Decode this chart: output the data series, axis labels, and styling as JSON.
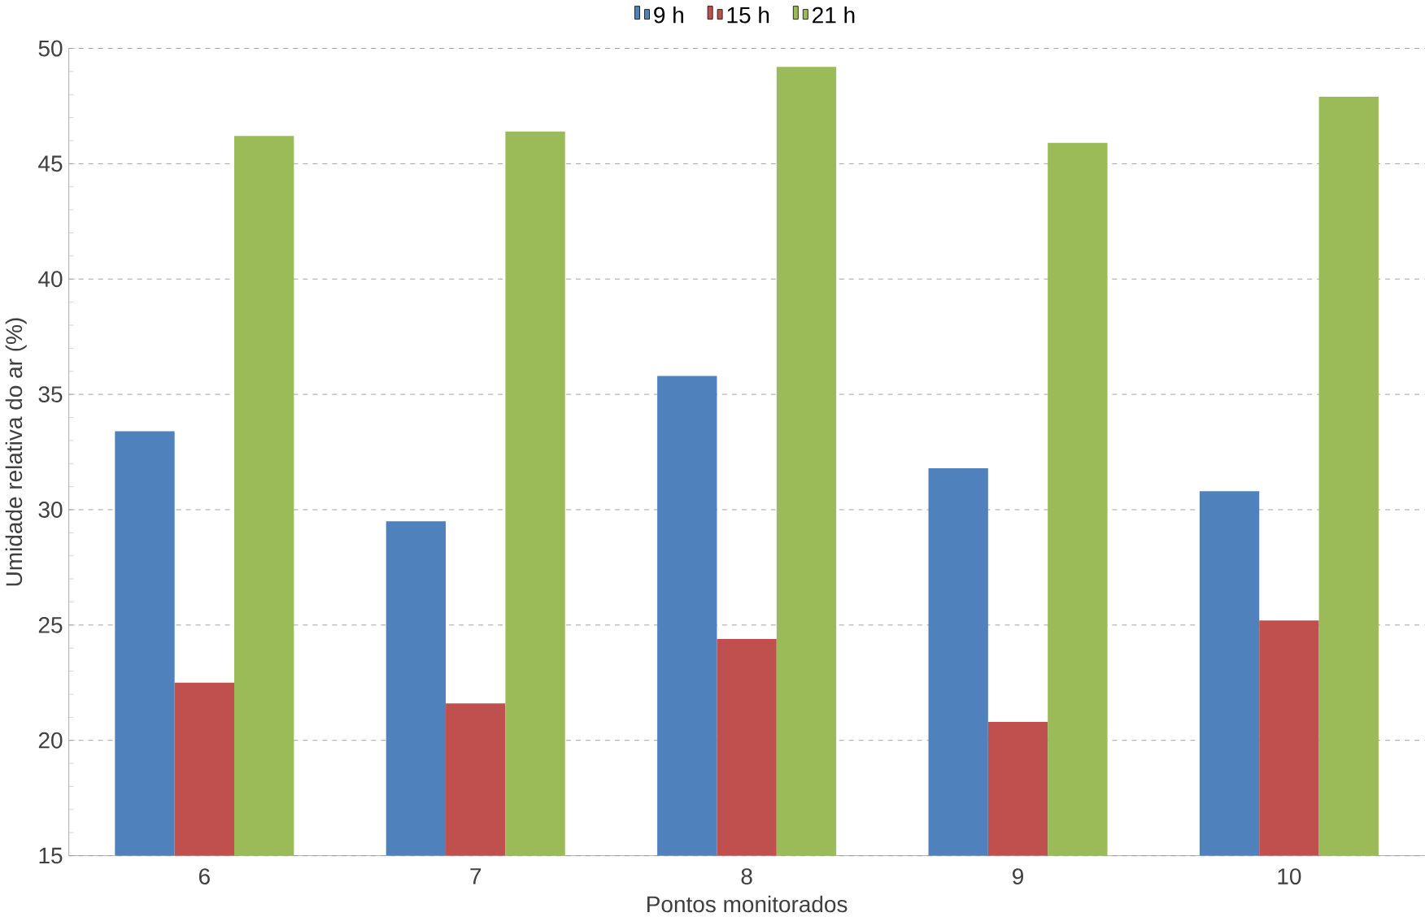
{
  "chart_data": {
    "type": "bar",
    "xlabel": "Pontos monitorados",
    "ylabel": "Umidade relativa do ar (%)",
    "categories": [
      "6",
      "7",
      "8",
      "9",
      "10"
    ],
    "series": [
      {
        "name": "9 h",
        "color": "#4f81bd",
        "values": [
          33.4,
          29.5,
          35.8,
          31.8,
          30.8
        ]
      },
      {
        "name": "15 h",
        "color": "#c0504d",
        "values": [
          22.5,
          21.6,
          24.4,
          20.8,
          25.2
        ]
      },
      {
        "name": "21 h",
        "color": "#9bbb59",
        "values": [
          46.2,
          46.4,
          49.2,
          45.9,
          47.9
        ]
      }
    ],
    "ylim": [
      15,
      50
    ],
    "yticks": [
      15,
      20,
      25,
      30,
      35,
      40,
      45,
      50
    ],
    "grid": "y",
    "legend": "top"
  }
}
